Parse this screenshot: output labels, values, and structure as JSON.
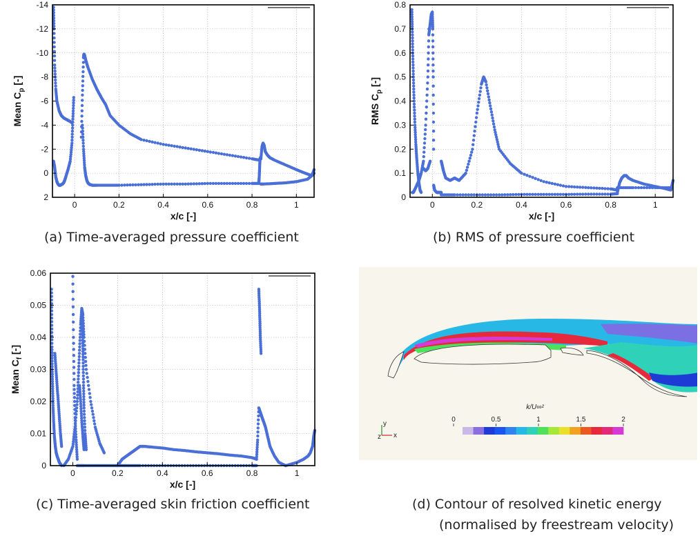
{
  "captions": {
    "a": "(a)   Time-averaged pressure coefficient",
    "b": "(b)   RMS of pressure coefficient",
    "c": "(c)   Time-averaged skin friction coefficient",
    "d_line1": "(d)   Contour of resolved kinetic energy",
    "d_line2": "(normalised by freestream velocity)"
  },
  "colors": {
    "series": "#4a6fd6",
    "contour_bg": "#f8f5ed",
    "colormap": [
      "#c9b8e8",
      "#8a6fe0",
      "#1f3bd6",
      "#1b55f0",
      "#2f84ef",
      "#27b8e6",
      "#2fd1b8",
      "#4fe05c",
      "#a6e83a",
      "#e8e02a",
      "#f2a21e",
      "#ea5a20",
      "#e62a3c",
      "#e22a78",
      "#d63ad6"
    ]
  },
  "chart_data": [
    {
      "id": "a",
      "type": "scatter",
      "title": "",
      "xlabel": "x/c [-]",
      "ylabel_main": "Mean  C",
      "ylabel_sub": "p",
      "ylabel_after": " [-]",
      "xlim": [
        -0.1,
        1.08
      ],
      "ylim": [
        2,
        -14
      ],
      "y_inverted": true,
      "xticks": [
        0,
        0.2,
        0.4,
        0.6,
        0.8,
        1
      ],
      "xtick_labels": [
        "0",
        "0.2",
        "0.4",
        "0.6",
        "0.8",
        "1"
      ],
      "yticks": [
        -14,
        -12,
        -10,
        -8,
        -6,
        -4,
        -2,
        0,
        2
      ],
      "ytick_labels": [
        "-14",
        "-12",
        "-10",
        "-8",
        "-6",
        "-4",
        "-2",
        "0",
        "2"
      ],
      "grid": true,
      "series": [
        {
          "x": [
            -0.095,
            -0.093,
            -0.09,
            -0.085,
            -0.08,
            -0.07,
            -0.06,
            -0.05,
            -0.04,
            -0.03,
            -0.02,
            -0.012
          ],
          "y": [
            -13.8,
            -12,
            -9,
            -7,
            -6,
            -5.2,
            -4.8,
            -4.6,
            -4.5,
            -4.4,
            -4.3,
            -4.2
          ]
        },
        {
          "x": [
            -0.095,
            -0.09,
            -0.085,
            -0.08,
            -0.075,
            -0.07,
            -0.065,
            -0.06,
            -0.055,
            -0.05,
            -0.045,
            -0.04
          ],
          "y": [
            -1,
            -0.5,
            0.3,
            0.7,
            0.9,
            1.0,
            1.0,
            0.95,
            0.9,
            0.8,
            0.6,
            0.3
          ]
        },
        {
          "x": [
            -0.04,
            -0.03,
            -0.02,
            -0.012,
            -0.008,
            -0.004
          ],
          "y": [
            0.3,
            -0.3,
            -1.0,
            -2.5,
            -4.5,
            -6.3
          ]
        },
        {
          "x": [
            0.03,
            0.035,
            0.04,
            0.042,
            0.045,
            0.05,
            0.06,
            0.08,
            0.1,
            0.12,
            0.14,
            0.16,
            0.2,
            0.25,
            0.3,
            0.4,
            0.5,
            0.6,
            0.7,
            0.8,
            0.83
          ],
          "y": [
            -3,
            -6.5,
            -9.6,
            -9.9,
            -9.8,
            -9.4,
            -8.8,
            -7.8,
            -7.0,
            -6.3,
            -5.7,
            -4.8,
            -4.0,
            -3.3,
            -2.8,
            -2.4,
            -2.1,
            -1.8,
            -1.5,
            -1.2,
            -1.1
          ]
        },
        {
          "x": [
            0.035,
            0.04,
            0.045,
            0.05,
            0.055,
            0.06,
            0.065,
            0.07,
            0.08,
            0.1,
            0.15,
            0.2,
            0.3,
            0.4,
            0.5,
            0.6,
            0.7,
            0.8,
            0.83
          ],
          "y": [
            -4,
            -2,
            -0.5,
            0.2,
            0.6,
            0.8,
            0.9,
            0.95,
            1.0,
            1.0,
            1.0,
            1.0,
            0.95,
            0.9,
            0.9,
            0.85,
            0.85,
            0.85,
            0.85
          ]
        },
        {
          "x": [
            0.83,
            0.832,
            0.834,
            0.836,
            0.838,
            0.84
          ],
          "y": [
            0.85,
            0.5,
            -0.3,
            -1.2,
            -1.3,
            -1.2
          ]
        },
        {
          "x": [
            0.84,
            0.845,
            0.85,
            0.855,
            0.86,
            0.87,
            0.88,
            0.9,
            0.95,
            1.0,
            1.04,
            1.07,
            1.08
          ],
          "y": [
            -1.2,
            -2.2,
            -2.5,
            -2.3,
            -1.8,
            -1.5,
            -1.3,
            -1.1,
            -0.7,
            -0.3,
            0,
            0.2,
            0
          ]
        },
        {
          "x": [
            0.84,
            0.85,
            0.9,
            0.95,
            1.0,
            1.05,
            1.07,
            1.08
          ],
          "y": [
            0.9,
            0.9,
            0.85,
            0.8,
            0.7,
            0.5,
            0.2,
            -0.3
          ]
        }
      ]
    },
    {
      "id": "b",
      "type": "scatter",
      "title": "",
      "xlabel": "x/c [-]",
      "ylabel_main": "RMS  C",
      "ylabel_sub": "p",
      "ylabel_after": " [-]",
      "xlim": [
        -0.1,
        1.08
      ],
      "ylim": [
        0,
        0.8
      ],
      "xticks": [
        0,
        0.2,
        0.4,
        0.6,
        0.8,
        1
      ],
      "xtick_labels": [
        "0",
        "0.2",
        "0.4",
        "0.6",
        "0.8",
        "1"
      ],
      "yticks": [
        0,
        0.1,
        0.2,
        0.3,
        0.4,
        0.5,
        0.6,
        0.7,
        0.8
      ],
      "ytick_labels": [
        "0",
        "0.1",
        "0.2",
        "0.3",
        "0.4",
        "0.5",
        "0.6",
        "0.7",
        "0.8"
      ],
      "grid": true,
      "series": [
        {
          "x": [
            -0.092,
            -0.09,
            -0.088,
            -0.085,
            -0.082,
            -0.078,
            -0.074,
            -0.07,
            -0.065,
            -0.06,
            -0.055,
            -0.05
          ],
          "y": [
            0.78,
            0.7,
            0.6,
            0.5,
            0.4,
            0.3,
            0.22,
            0.16,
            0.1,
            0.06,
            0.03,
            0.02
          ]
        },
        {
          "x": [
            -0.09,
            -0.085,
            -0.08,
            -0.07,
            -0.06,
            -0.05,
            -0.04,
            -0.03,
            -0.02,
            -0.015
          ],
          "y": [
            0.02,
            0.02,
            0.03,
            0.05,
            0.07,
            0.1,
            0.15,
            0.3,
            0.5,
            0.7
          ]
        },
        {
          "x": [
            -0.015,
            -0.01,
            -0.005,
            0,
            0.002,
            0.004,
            0.006
          ],
          "y": [
            0.68,
            0.72,
            0.76,
            0.77,
            0.7,
            0.5,
            0.2
          ]
        },
        {
          "x": [
            -0.04,
            -0.03,
            -0.02,
            -0.01
          ],
          "y": [
            0.12,
            0.11,
            0.12,
            0.15
          ]
        },
        {
          "x": [
            0.006,
            0.01,
            0.02,
            0.03,
            0.04
          ],
          "y": [
            0.05,
            0.03,
            0.02,
            0.02,
            0.02
          ]
        },
        {
          "x": [
            0.04,
            0.045,
            0.05,
            0.06,
            0.08,
            0.1,
            0.12,
            0.15,
            0.18,
            0.2,
            0.22,
            0.23,
            0.24,
            0.26,
            0.28,
            0.3,
            0.35,
            0.4,
            0.5,
            0.6,
            0.7,
            0.8,
            0.83
          ],
          "y": [
            0.15,
            0.13,
            0.11,
            0.08,
            0.07,
            0.08,
            0.07,
            0.1,
            0.2,
            0.35,
            0.47,
            0.5,
            0.48,
            0.38,
            0.28,
            0.2,
            0.14,
            0.1,
            0.065,
            0.045,
            0.04,
            0.035,
            0.03
          ]
        },
        {
          "x": [
            0.04,
            0.1,
            0.2,
            0.3,
            0.4,
            0.5,
            0.6,
            0.7,
            0.8,
            0.83
          ],
          "y": [
            0.01,
            0.01,
            0.01,
            0.01,
            0.012,
            0.012,
            0.012,
            0.013,
            0.013,
            0.015
          ]
        },
        {
          "x": [
            0.83,
            0.84,
            0.85,
            0.86,
            0.87,
            0.88,
            0.9,
            0.95,
            1.0,
            1.05,
            1.07,
            1.08
          ],
          "y": [
            0.02,
            0.06,
            0.08,
            0.09,
            0.09,
            0.08,
            0.07,
            0.055,
            0.045,
            0.035,
            0.03,
            0.07
          ]
        },
        {
          "x": [
            0.83,
            0.9,
            1.0,
            1.07
          ],
          "y": [
            0.04,
            0.04,
            0.04,
            0.04
          ]
        }
      ]
    },
    {
      "id": "c",
      "type": "scatter",
      "title": "",
      "xlabel": "x/c [-]",
      "ylabel_main": "Mean  C",
      "ylabel_sub": "f",
      "ylabel_after": " [-]",
      "xlim": [
        -0.1,
        1.08
      ],
      "ylim": [
        0,
        0.06
      ],
      "xticks": [
        0,
        0.2,
        0.4,
        0.6,
        0.8,
        1
      ],
      "xtick_labels": [
        "0",
        "0.2",
        "0.4",
        "0.6",
        "0.8",
        "1"
      ],
      "yticks": [
        0,
        0.01,
        0.02,
        0.03,
        0.04,
        0.05,
        0.06
      ],
      "ytick_labels": [
        "0",
        "0.01",
        "0.02",
        "0.03",
        "0.04",
        "0.05",
        "0.06"
      ],
      "grid": true,
      "series": [
        {
          "x": [
            -0.095,
            -0.094,
            -0.093,
            -0.092,
            -0.09,
            -0.088,
            -0.085,
            -0.082,
            -0.078,
            -0.074,
            -0.07,
            -0.065,
            -0.06,
            -0.055,
            -0.05
          ],
          "y": [
            0.055,
            0.046,
            0.037,
            0.03,
            0.024,
            0.018,
            0.013,
            0.009,
            0.006,
            0.004,
            0.003,
            0.002,
            0.001,
            0.0005,
            0.0
          ]
        },
        {
          "x": [
            -0.08,
            -0.075,
            -0.07,
            -0.065,
            -0.06,
            -0.055,
            -0.05
          ],
          "y": [
            0.035,
            0.03,
            0.025,
            0.02,
            0.015,
            0.01,
            0.006
          ]
        },
        {
          "x": [
            -0.04,
            -0.02,
            0,
            0.01,
            0.02,
            0.025,
            0.03,
            0.035,
            0.04,
            0.045,
            0.05,
            0.06,
            0.08,
            0.1,
            0.12,
            0.14
          ],
          "y": [
            0.0,
            0.002,
            0.006,
            0.012,
            0.02,
            0.028,
            0.036,
            0.044,
            0.049,
            0.047,
            0.04,
            0.03,
            0.02,
            0.012,
            0.007,
            0.004
          ]
        },
        {
          "x": [
            0.04,
            0.042,
            0.044,
            0.046,
            0.048,
            0.05,
            0.055,
            0.06
          ],
          "y": [
            0.048,
            0.045,
            0.04,
            0.033,
            0.025,
            0.018,
            0.01,
            0.005
          ]
        },
        {
          "x": [
            0.03,
            0.035,
            0.04,
            0.045,
            0.05
          ],
          "y": [
            0.025,
            0.02,
            0.014,
            0.009,
            0.005
          ]
        },
        {
          "x": [
            0.0,
            0.003,
            0.006,
            0.01,
            0.015,
            0.02
          ],
          "y": [
            0.059,
            0.04,
            0.025,
            0.015,
            0.008,
            0.002
          ]
        },
        {
          "x": [
            0.02,
            0.05,
            0.1,
            0.15,
            0.2,
            0.25,
            0.3,
            0.4,
            0.5,
            0.6,
            0.7,
            0.8,
            0.82
          ],
          "y": [
            0.0,
            0.0,
            0.0,
            0.0,
            0.0,
            0.0,
            0.0,
            0.0,
            0.0,
            0.0,
            0.0,
            0.0,
            0.0
          ]
        },
        {
          "x": [
            0.2,
            0.22,
            0.24,
            0.26,
            0.28,
            0.3,
            0.32,
            0.35,
            0.4,
            0.45,
            0.5,
            0.55,
            0.6,
            0.65,
            0.7,
            0.75,
            0.8,
            0.82
          ],
          "y": [
            0.0,
            0.002,
            0.003,
            0.004,
            0.005,
            0.006,
            0.006,
            0.0058,
            0.0055,
            0.005,
            0.0047,
            0.0043,
            0.004,
            0.0037,
            0.0033,
            0.003,
            0.0025,
            0.002
          ]
        },
        {
          "x": [
            0.82,
            0.825,
            0.83,
            0.835,
            0.84,
            0.845,
            0.85,
            0.86,
            0.87,
            0.88,
            0.9,
            0.92,
            0.95
          ],
          "y": [
            0.002,
            0.008,
            0.018,
            0.017,
            0.016,
            0.015,
            0.014,
            0.012,
            0.009,
            0.006,
            0.003,
            0.001,
            0.0
          ]
        },
        {
          "x": [
            0.83,
            0.833,
            0.835,
            0.837,
            0.84
          ],
          "y": [
            0.055,
            0.05,
            0.045,
            0.04,
            0.035
          ]
        },
        {
          "x": [
            0.95,
            1.0,
            1.03,
            1.05,
            1.06,
            1.07,
            1.075,
            1.08
          ],
          "y": [
            0.0,
            0.001,
            0.002,
            0.003,
            0.004,
            0.006,
            0.009,
            0.011
          ]
        }
      ]
    }
  ],
  "contour": {
    "cbar_title": "k/U∞²",
    "cbar_ticks": [
      "0",
      "0.5",
      "1",
      "1.5",
      "2"
    ],
    "cbar_values": [
      0,
      0.5,
      1,
      1.5,
      2
    ],
    "cbar_range": [
      0,
      2
    ],
    "triad_labels": [
      "y",
      "z",
      "x"
    ]
  }
}
